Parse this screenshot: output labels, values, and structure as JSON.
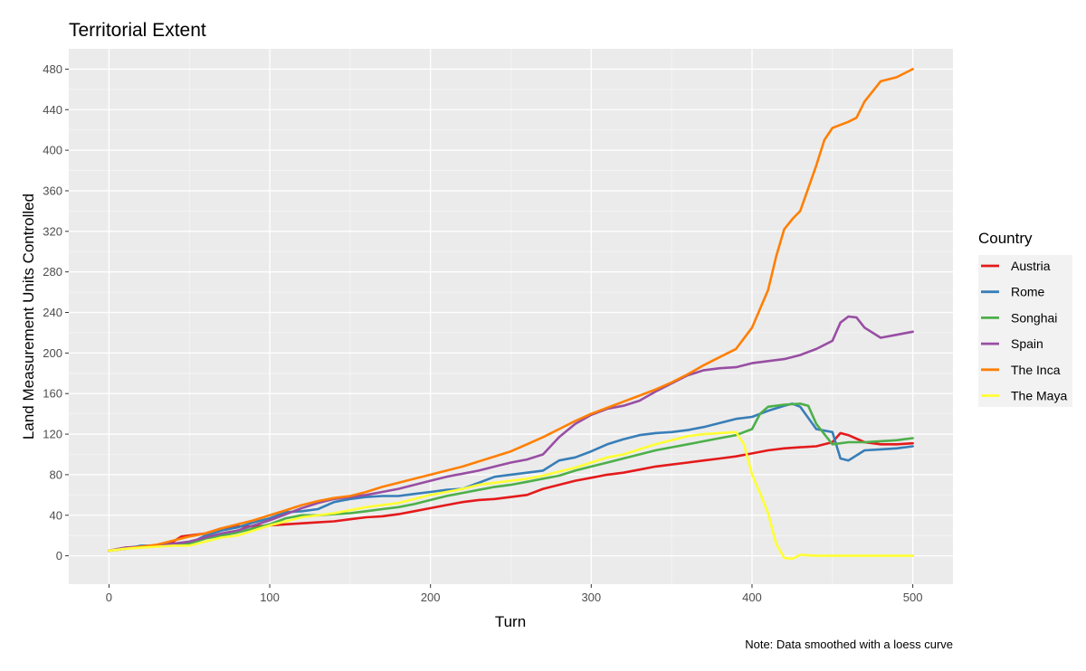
{
  "chart_data": {
    "type": "line",
    "title": "Territorial Extent",
    "xlabel": "Turn",
    "ylabel": "Land Measurement Units Controlled",
    "caption": "Note: Data smoothed with a loess curve",
    "legend_title": "Country",
    "legend_position": "right",
    "xlim": [
      -25,
      525
    ],
    "ylim": [
      -28,
      500
    ],
    "x_ticks": [
      0,
      100,
      200,
      300,
      400,
      500
    ],
    "y_ticks": [
      0,
      40,
      80,
      120,
      160,
      200,
      240,
      280,
      320,
      360,
      400,
      440,
      480
    ],
    "grid": true,
    "series": [
      {
        "name": "Austria",
        "color": "#E41A1C",
        "x": [
          0,
          10,
          20,
          30,
          40,
          45,
          50,
          60,
          70,
          80,
          90,
          100,
          110,
          120,
          130,
          140,
          150,
          160,
          170,
          180,
          190,
          200,
          210,
          220,
          230,
          240,
          250,
          260,
          270,
          280,
          290,
          300,
          310,
          320,
          330,
          340,
          350,
          360,
          370,
          380,
          390,
          400,
          410,
          420,
          430,
          440,
          450,
          455,
          460,
          470,
          480,
          490,
          500
        ],
        "y": [
          5,
          8,
          9,
          10,
          14,
          19,
          20,
          22,
          27,
          29,
          29,
          30,
          31,
          32,
          33,
          34,
          36,
          38,
          39,
          41,
          44,
          47,
          50,
          53,
          55,
          56,
          58,
          60,
          66,
          70,
          74,
          77,
          80,
          82,
          85,
          88,
          90,
          92,
          94,
          96,
          98,
          101,
          104,
          106,
          107,
          108,
          112,
          121,
          119,
          112,
          110,
          110,
          111
        ]
      },
      {
        "name": "Rome",
        "color": "#377EB8",
        "x": [
          0,
          10,
          20,
          30,
          40,
          50,
          60,
          70,
          80,
          90,
          100,
          110,
          120,
          130,
          140,
          150,
          160,
          170,
          180,
          190,
          200,
          210,
          220,
          230,
          240,
          250,
          260,
          270,
          280,
          290,
          300,
          310,
          320,
          330,
          340,
          350,
          360,
          370,
          380,
          390,
          400,
          410,
          420,
          425,
          430,
          440,
          450,
          455,
          460,
          470,
          480,
          490,
          500
        ],
        "y": [
          5,
          7,
          10,
          10,
          11,
          12,
          20,
          25,
          28,
          33,
          37,
          43,
          44,
          46,
          53,
          56,
          58,
          59,
          59,
          61,
          63,
          65,
          66,
          72,
          78,
          80,
          82,
          84,
          94,
          97,
          103,
          110,
          115,
          119,
          121,
          122,
          124,
          127,
          131,
          135,
          137,
          143,
          148,
          150,
          147,
          125,
          122,
          96,
          94,
          104,
          105,
          106,
          108
        ]
      },
      {
        "name": "Songhai",
        "color": "#4DAF4A",
        "x": [
          0,
          10,
          20,
          30,
          40,
          50,
          60,
          70,
          80,
          90,
          100,
          110,
          120,
          130,
          140,
          150,
          160,
          170,
          180,
          190,
          200,
          210,
          220,
          230,
          240,
          250,
          260,
          270,
          280,
          290,
          300,
          310,
          320,
          330,
          340,
          350,
          360,
          370,
          380,
          390,
          400,
          405,
          410,
          420,
          430,
          435,
          440,
          450,
          460,
          470,
          480,
          490,
          500
        ],
        "y": [
          5,
          7,
          9,
          10,
          11,
          12,
          17,
          20,
          23,
          27,
          31,
          37,
          40,
          40,
          41,
          42,
          44,
          46,
          48,
          51,
          55,
          59,
          62,
          65,
          68,
          70,
          73,
          76,
          79,
          84,
          88,
          92,
          96,
          100,
          104,
          107,
          110,
          113,
          116,
          119,
          125,
          140,
          147,
          149,
          150,
          148,
          130,
          110,
          112,
          112,
          113,
          114,
          116
        ]
      },
      {
        "name": "Spain",
        "color": "#984EA3",
        "x": [
          0,
          10,
          20,
          30,
          40,
          50,
          60,
          70,
          80,
          90,
          100,
          110,
          120,
          130,
          140,
          150,
          160,
          170,
          180,
          190,
          200,
          210,
          220,
          230,
          240,
          250,
          260,
          270,
          280,
          290,
          300,
          310,
          320,
          330,
          340,
          350,
          360,
          370,
          380,
          390,
          400,
          410,
          420,
          430,
          440,
          450,
          455,
          460,
          465,
          470,
          480,
          490,
          500
        ],
        "y": [
          5,
          8,
          9,
          10,
          12,
          14,
          18,
          22,
          25,
          30,
          35,
          41,
          47,
          52,
          56,
          58,
          60,
          63,
          66,
          70,
          74,
          78,
          81,
          84,
          88,
          92,
          95,
          100,
          117,
          130,
          139,
          145,
          148,
          153,
          162,
          170,
          178,
          183,
          185,
          186,
          190,
          192,
          194,
          198,
          204,
          212,
          230,
          236,
          235,
          225,
          215,
          218,
          221
        ]
      },
      {
        "name": "The Inca",
        "color": "#FF7F00",
        "x": [
          0,
          10,
          20,
          30,
          40,
          50,
          60,
          70,
          80,
          90,
          100,
          110,
          120,
          130,
          140,
          150,
          160,
          170,
          180,
          190,
          200,
          210,
          220,
          230,
          240,
          250,
          260,
          270,
          280,
          290,
          300,
          310,
          320,
          330,
          340,
          350,
          360,
          370,
          380,
          390,
          400,
          410,
          415,
          420,
          425,
          430,
          440,
          445,
          450,
          460,
          465,
          470,
          480,
          490,
          500
        ],
        "y": [
          5,
          7,
          9,
          11,
          15,
          19,
          22,
          27,
          31,
          35,
          40,
          45,
          50,
          54,
          57,
          59,
          63,
          68,
          72,
          76,
          80,
          84,
          88,
          93,
          98,
          103,
          110,
          117,
          125,
          133,
          140,
          146,
          152,
          158,
          164,
          171,
          179,
          188,
          196,
          204,
          225,
          262,
          295,
          322,
          332,
          340,
          385,
          410,
          422,
          428,
          432,
          448,
          468,
          472,
          480
        ]
      },
      {
        "name": "The Maya",
        "color": "#FFFF33",
        "x": [
          0,
          10,
          20,
          30,
          40,
          50,
          60,
          70,
          80,
          90,
          100,
          110,
          120,
          130,
          140,
          150,
          160,
          170,
          180,
          190,
          200,
          210,
          220,
          230,
          240,
          250,
          260,
          270,
          280,
          290,
          300,
          310,
          320,
          330,
          340,
          350,
          360,
          370,
          380,
          390,
          395,
          400,
          405,
          410,
          415,
          420,
          425,
          430,
          440,
          460,
          480,
          500
        ],
        "y": [
          5,
          7,
          8,
          9,
          10,
          10,
          14,
          18,
          20,
          25,
          30,
          34,
          38,
          40,
          42,
          45,
          48,
          50,
          52,
          56,
          60,
          63,
          66,
          70,
          72,
          74,
          76,
          79,
          83,
          87,
          92,
          97,
          100,
          105,
          110,
          114,
          118,
          120,
          121,
          122,
          110,
          80,
          62,
          42,
          12,
          -2,
          -3,
          1,
          0,
          0,
          0,
          0
        ]
      }
    ]
  }
}
